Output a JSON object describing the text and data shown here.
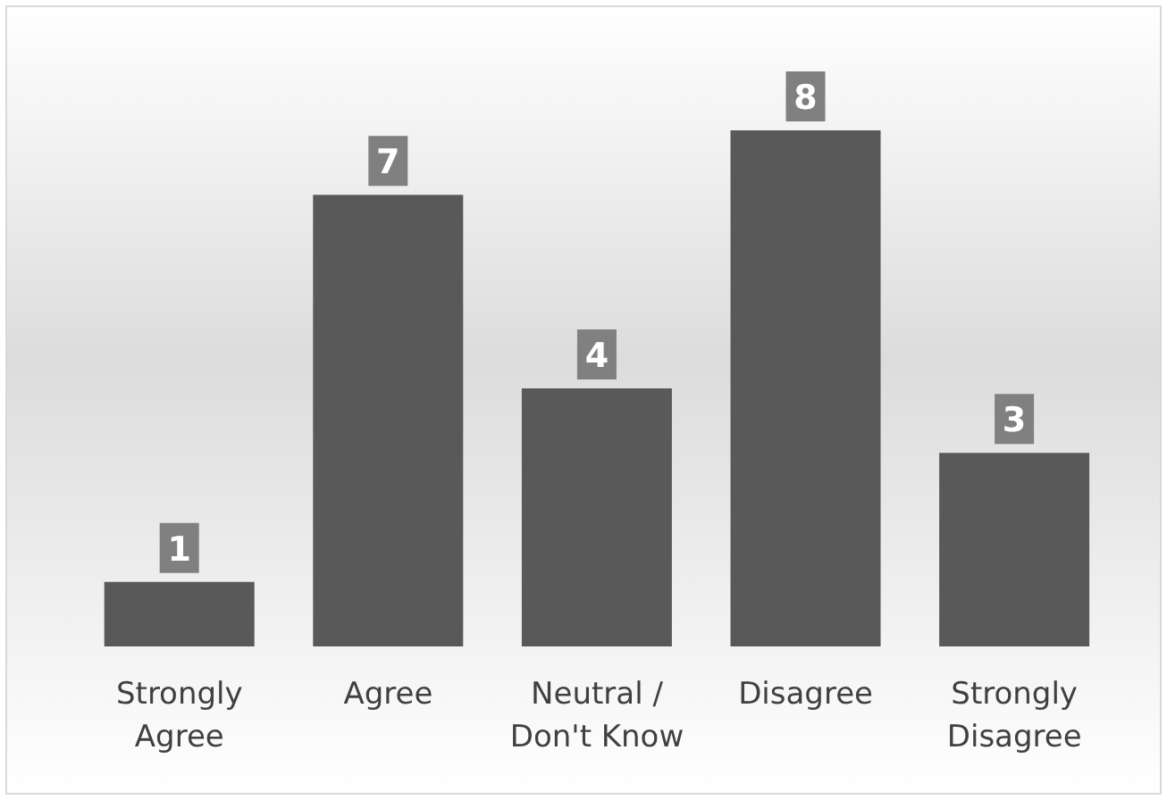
{
  "chart_data": {
    "type": "bar",
    "categories": [
      "Strongly Agree",
      "Agree",
      "Neutral / Don't Know",
      "Disagree",
      "Strongly Disagree"
    ],
    "values": [
      1,
      7,
      4,
      8,
      3
    ],
    "color": "#595959",
    "data_labels": true
  }
}
